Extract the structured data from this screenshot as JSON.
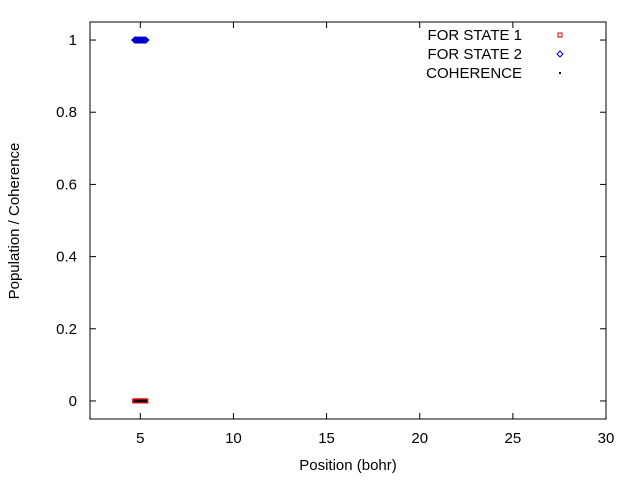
{
  "chart_data": {
    "type": "scatter",
    "title": "",
    "xlabel": "Position (bohr)",
    "ylabel": "Population / Coherence",
    "xlim": [
      2.3,
      30
    ],
    "ylim": [
      -0.05,
      1.05
    ],
    "x_ticks": [
      5,
      10,
      15,
      20,
      25,
      30
    ],
    "y_ticks": [
      0,
      0.2,
      0.4,
      0.6,
      0.8,
      1
    ],
    "grid": false,
    "legend_position": "top-right",
    "series": [
      {
        "name": "FOR STATE 1",
        "marker": "square",
        "color": "#cc0000",
        "x": [
          4.7,
          4.75,
          4.8,
          4.85,
          4.9,
          4.95,
          5.0,
          5.05,
          5.1,
          5.15,
          5.2,
          5.25,
          5.3
        ],
        "y": [
          0,
          0,
          0,
          0,
          0,
          0,
          0,
          0,
          0,
          0,
          0,
          0,
          0
        ]
      },
      {
        "name": "FOR STATE 2",
        "marker": "diamond",
        "color": "#0000cc",
        "x": [
          4.7,
          4.75,
          4.8,
          4.85,
          4.9,
          4.95,
          5.0,
          5.05,
          5.1,
          5.15,
          5.2,
          5.25,
          5.3
        ],
        "y": [
          1,
          1,
          1,
          1,
          1,
          1,
          1,
          1,
          1,
          1,
          1,
          1,
          1
        ]
      },
      {
        "name": "COHERENCE",
        "marker": "dot",
        "color": "#000000",
        "x": [
          4.7,
          4.75,
          4.8,
          4.85,
          4.9,
          4.95,
          5.0,
          5.05,
          5.1,
          5.15,
          5.2,
          5.25,
          5.3
        ],
        "y": [
          0,
          0,
          0,
          0,
          0,
          0,
          0,
          0,
          0,
          0,
          0,
          0,
          0
        ]
      }
    ]
  }
}
